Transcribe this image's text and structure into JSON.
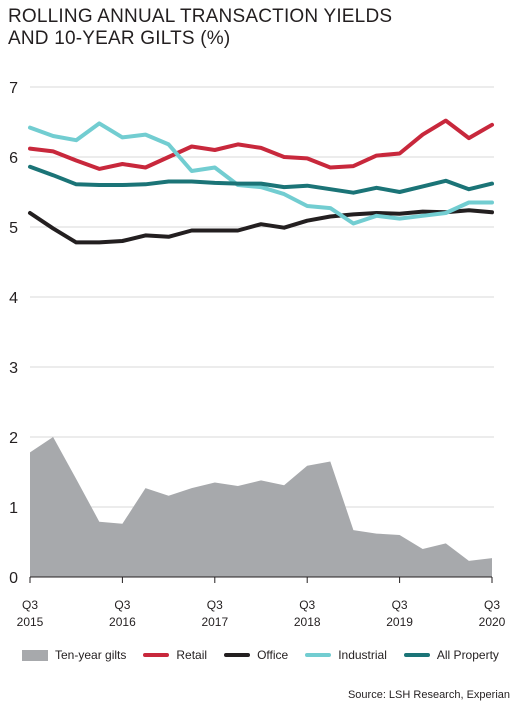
{
  "title": "ROLLING ANNUAL TRANSACTION YIELDS\nAND 10-YEAR GILTS (%)",
  "source": "Source: LSH Research, Experian",
  "chart_data": {
    "type": "line",
    "ylim": [
      0,
      7
    ],
    "yticks": [
      0,
      1,
      2,
      3,
      4,
      5,
      6,
      7
    ],
    "grid": true,
    "x": [
      0,
      1,
      2,
      3,
      4,
      5,
      6,
      7,
      8,
      9,
      10,
      11,
      12,
      13,
      14,
      15,
      16,
      17,
      18,
      19,
      20
    ],
    "xtick_positions": [
      0,
      4,
      8,
      12,
      16,
      20
    ],
    "xtick_labels": [
      {
        "q": "Q3",
        "year": "2015"
      },
      {
        "q": "Q3",
        "year": "2016"
      },
      {
        "q": "Q3",
        "year": "2017"
      },
      {
        "q": "Q3",
        "year": "2018"
      },
      {
        "q": "Q3",
        "year": "2019"
      },
      {
        "q": "Q3",
        "year": "2020"
      }
    ],
    "series": [
      {
        "name": "Ten-year gilts",
        "kind": "area",
        "color": "#a7a9ac",
        "values": [
          1.78,
          2.0,
          1.4,
          0.79,
          0.76,
          1.27,
          1.16,
          1.27,
          1.35,
          1.3,
          1.38,
          1.31,
          1.59,
          1.65,
          0.67,
          0.62,
          0.6,
          0.4,
          0.48,
          0.23,
          0.27
        ]
      },
      {
        "name": "Retail",
        "kind": "line",
        "color": "#c8283c",
        "values": [
          6.12,
          6.08,
          5.95,
          5.83,
          5.9,
          5.85,
          6.0,
          6.15,
          6.1,
          6.18,
          6.13,
          6.0,
          5.98,
          5.85,
          5.87,
          6.02,
          6.05,
          6.32,
          6.52,
          6.27,
          6.46
        ]
      },
      {
        "name": "Office",
        "kind": "line",
        "color": "#231f20",
        "values": [
          5.2,
          4.98,
          4.78,
          4.78,
          4.8,
          4.88,
          4.86,
          4.95,
          4.95,
          4.95,
          5.04,
          4.99,
          5.09,
          5.15,
          5.18,
          5.2,
          5.19,
          5.22,
          5.21,
          5.24,
          5.21
        ]
      },
      {
        "name": "Industrial",
        "kind": "line",
        "color": "#72cdd1",
        "values": [
          6.42,
          6.3,
          6.24,
          6.48,
          6.28,
          6.32,
          6.18,
          5.8,
          5.85,
          5.6,
          5.57,
          5.47,
          5.3,
          5.27,
          5.05,
          5.16,
          5.12,
          5.16,
          5.2,
          5.35,
          5.35
        ]
      },
      {
        "name": "All Property",
        "kind": "line",
        "color": "#1b7477",
        "values": [
          5.86,
          5.74,
          5.61,
          5.6,
          5.6,
          5.61,
          5.65,
          5.65,
          5.63,
          5.62,
          5.62,
          5.57,
          5.59,
          5.54,
          5.49,
          5.56,
          5.5,
          5.58,
          5.66,
          5.54,
          5.62
        ]
      }
    ]
  }
}
